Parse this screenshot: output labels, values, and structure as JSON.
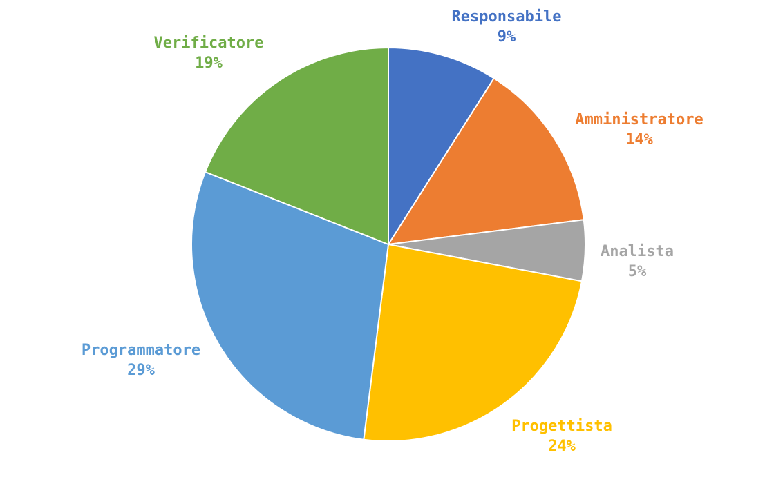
{
  "chart_data": {
    "type": "pie",
    "title": "",
    "legend": "none",
    "slices": [
      {
        "label": "Responsabile",
        "value": 9,
        "display": "9%",
        "color": "#4472C4"
      },
      {
        "label": "Amministratore",
        "value": 14,
        "display": "14%",
        "color": "#ED7D31"
      },
      {
        "label": "Analista",
        "value": 5,
        "display": "5%",
        "color": "#A5A5A5"
      },
      {
        "label": "Progettista",
        "value": 24,
        "display": "24%",
        "color": "#FFC000"
      },
      {
        "label": "Programmatore",
        "value": 29,
        "display": "29%",
        "color": "#5B9BD5"
      },
      {
        "label": "Verificatore",
        "value": 19,
        "display": "19%",
        "color": "#70AD47"
      }
    ]
  }
}
